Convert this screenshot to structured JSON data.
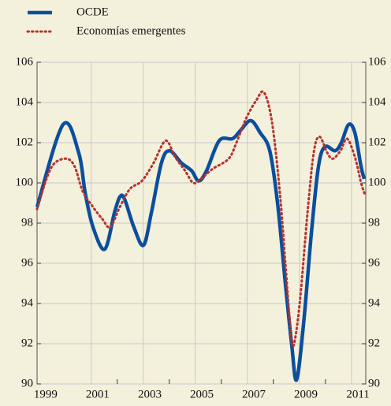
{
  "chart_data": {
    "type": "line",
    "legend_position": "top-left",
    "series": [
      {
        "name": "OCDE",
        "color": "#0b4f9c",
        "style": "solid",
        "x": [
          1998.67,
          1999.67,
          2000.27,
          2000.52,
          2000.82,
          2001.27,
          2001.64,
          2001.85,
          2002.03,
          2002.39,
          2002.76,
          2003.06,
          2003.45,
          2003.76,
          2004.21,
          2004.61,
          2004.88,
          2005.18,
          2005.67,
          2006.18,
          2006.48,
          2006.88,
          2007.24,
          2007.61,
          2007.91,
          2008.21,
          2008.45,
          2008.64,
          2008.91,
          2009.21,
          2009.48,
          2009.73,
          2010.12,
          2010.36,
          2010.64,
          2010.88,
          2011.12,
          2011.24
        ],
        "values": [
          98.8,
          102.9,
          101.5,
          99.5,
          97.8,
          96.7,
          98.5,
          99.3,
          99.2,
          97.8,
          96.9,
          98.5,
          101,
          101.6,
          101,
          100.6,
          100.1,
          100.6,
          102.1,
          102.2,
          102.6,
          103.1,
          102.5,
          101.6,
          99,
          95,
          92,
          90.2,
          93,
          97.5,
          100.8,
          101.8,
          101.6,
          102,
          102.9,
          102.5,
          100.8,
          100.2
        ]
      },
      {
        "name": "Economías emergentes",
        "color": "#b8312f",
        "style": "dotted",
        "x": [
          1998.67,
          1999.06,
          1999.36,
          1999.82,
          2000.12,
          2000.42,
          2000.82,
          2001.18,
          2001.48,
          2001.85,
          2002.24,
          2002.7,
          2003.15,
          2003.61,
          2003.97,
          2004.36,
          2004.67,
          2004.97,
          2005.42,
          2006.03,
          2006.33,
          2006.7,
          2007.09,
          2007.39,
          2007.7,
          2008.0,
          2008.21,
          2008.39,
          2008.52,
          2008.76,
          2009.06,
          2009.3,
          2009.52,
          2009.82,
          2010.03,
          2010.33,
          2010.58,
          2010.88,
          2011.12,
          2011.27
        ],
        "values": [
          98.7,
          100.3,
          101,
          101.2,
          100.8,
          99.6,
          98.8,
          98.2,
          97.8,
          98.8,
          99.7,
          100.1,
          101,
          102.1,
          101.3,
          100.6,
          100,
          100.2,
          100.7,
          101.2,
          102,
          103.2,
          104.1,
          104.5,
          103,
          99.5,
          96,
          93,
          91.9,
          94,
          98.5,
          101.5,
          102.3,
          101.5,
          101.2,
          101.6,
          102.2,
          101.3,
          100,
          99.4
        ]
      }
    ],
    "xlim": [
      1998.67,
      2011.3
    ],
    "xticks": [
      {
        "value": 1999,
        "label": "1999"
      },
      {
        "value": 2001,
        "label": "2001"
      },
      {
        "value": 2003,
        "label": "2003"
      },
      {
        "value": 2005,
        "label": "2005"
      },
      {
        "value": 2007,
        "label": "2007"
      },
      {
        "value": 2009,
        "label": "2009"
      },
      {
        "value": 2011,
        "label": "2011"
      }
    ],
    "xgrid": [
      2000.75,
      2002.75,
      2004.75,
      2006.75,
      2008.75,
      2010.75
    ],
    "xminor": [
      2001.75,
      2003.75,
      2005.75,
      2007.75,
      2009.75
    ],
    "ylim": [
      90,
      106
    ],
    "yticks": [
      90,
      92,
      94,
      96,
      98,
      100,
      102,
      104,
      106
    ],
    "y2lim": [
      90,
      106
    ],
    "y2ticks": [
      90,
      92,
      94,
      96,
      98,
      100,
      102,
      104,
      106
    ],
    "grid": true
  }
}
